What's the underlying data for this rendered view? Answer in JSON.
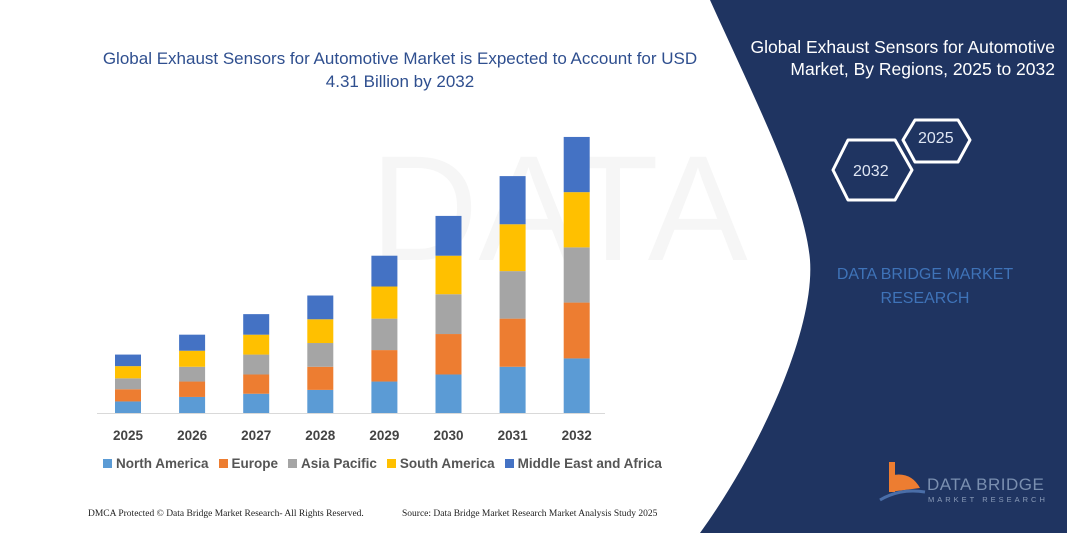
{
  "left_title": "Global Exhaust Sensors for Automotive Market is Expected to Account for USD 4.31 Billion by 2032",
  "right_panel": {
    "title": "Global Exhaust Sensors for Automotive Market, By Regions, 2025 to 2032",
    "hex_start": "2025",
    "hex_end": "2032",
    "watermark_text": "DATA BRIDGE MARKET RESEARCH",
    "logo_text": "DATA BRIDGE",
    "logo_subtext": "MARKET RESEARCH",
    "background_color": "#1f3461"
  },
  "footer": {
    "left": "DMCA Protected © Data Bridge Market Research-  All Rights Reserved.",
    "right": "Source: Data Bridge Market Research  Market Analysis Study 2025"
  },
  "chart_data": {
    "type": "bar",
    "stacked": true,
    "title": "Global Exhaust Sensors for Automotive Market is Expected to Account for USD 4.31 Billion by 2032",
    "xlabel": "",
    "ylabel": "",
    "y_axis_shown": false,
    "grid": false,
    "legend_placement": "bottom",
    "categories": [
      "2025",
      "2026",
      "2027",
      "2028",
      "2029",
      "2030",
      "2031",
      "2032"
    ],
    "ylim": [
      0,
      4.31
    ],
    "series": [
      {
        "name": "North America",
        "color": "#5b9bd5",
        "values": [
          0.18,
          0.25,
          0.3,
          0.36,
          0.49,
          0.6,
          0.72,
          0.85
        ]
      },
      {
        "name": "Europe",
        "color": "#ed7d31",
        "values": [
          0.19,
          0.24,
          0.3,
          0.36,
          0.49,
          0.63,
          0.75,
          0.87
        ]
      },
      {
        "name": "Asia Pacific",
        "color": "#a5a5a5",
        "values": [
          0.17,
          0.23,
          0.31,
          0.37,
          0.49,
          0.62,
          0.74,
          0.86
        ]
      },
      {
        "name": "South America",
        "color": "#ffc000",
        "values": [
          0.19,
          0.25,
          0.31,
          0.37,
          0.5,
          0.6,
          0.73,
          0.86
        ]
      },
      {
        "name": "Middle East and Africa",
        "color": "#4472c4",
        "values": [
          0.18,
          0.25,
          0.32,
          0.37,
          0.48,
          0.62,
          0.75,
          0.86
        ]
      }
    ]
  }
}
